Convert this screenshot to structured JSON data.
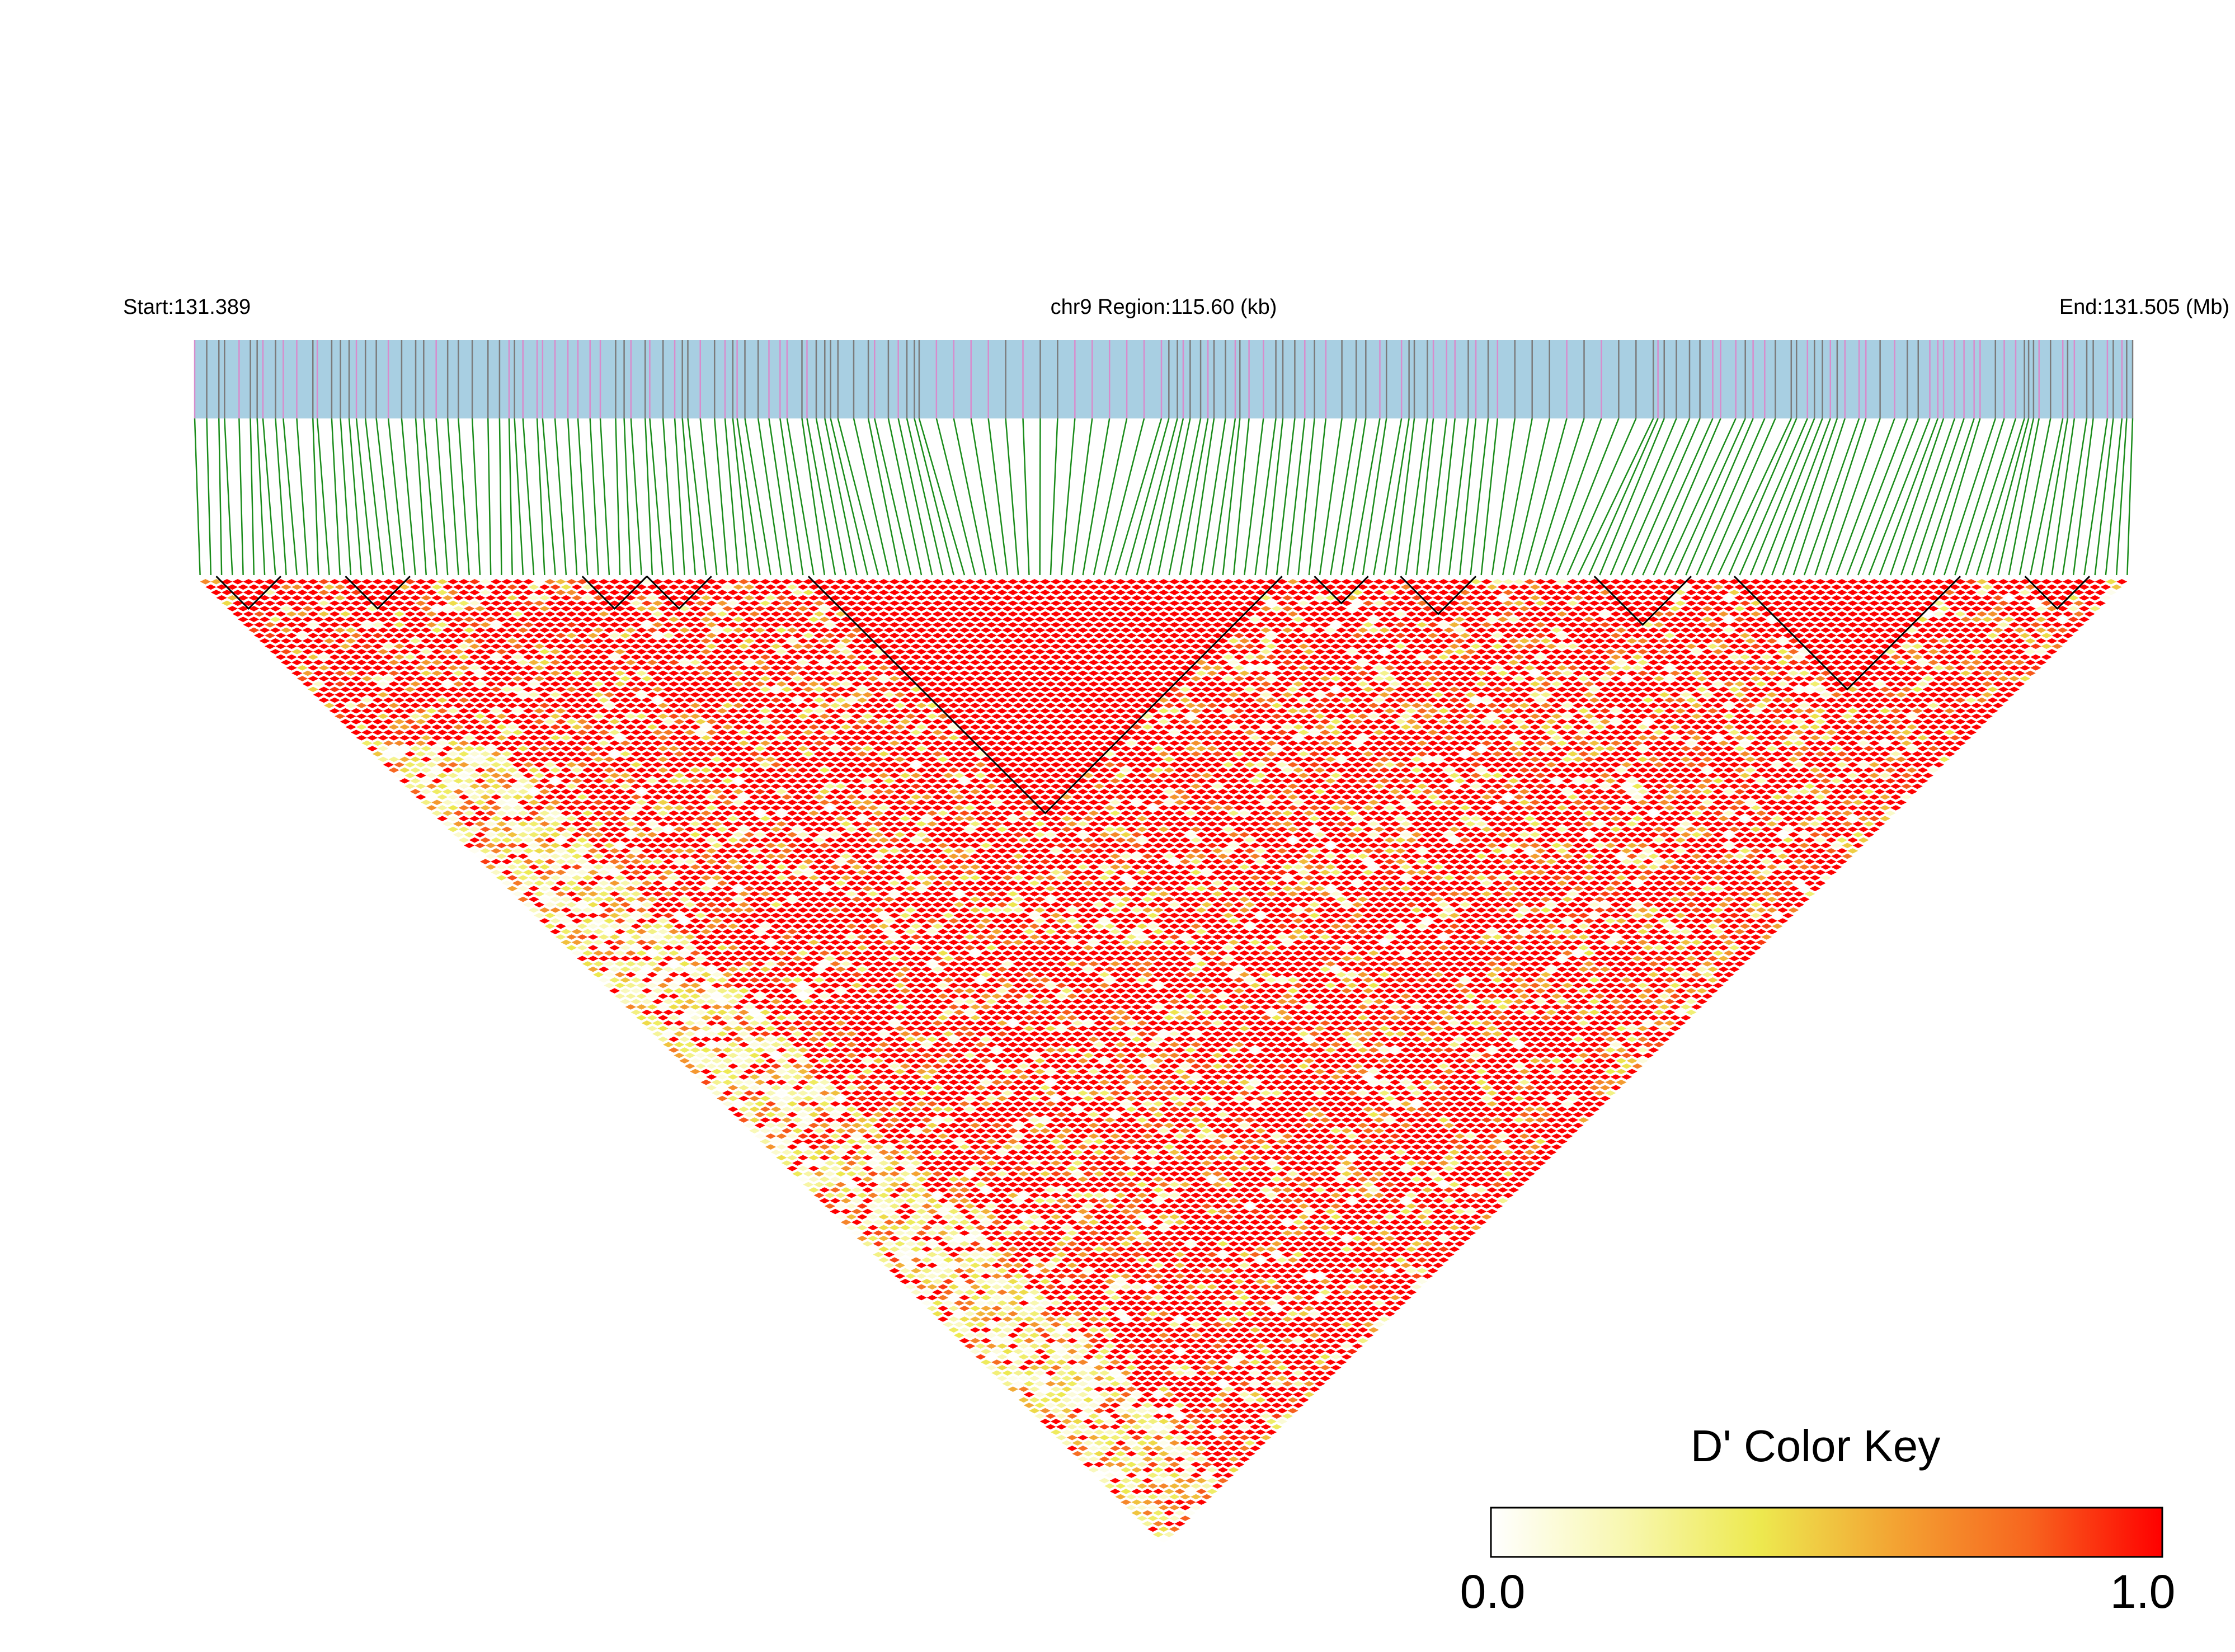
{
  "header": {
    "start_label": "Start:131.389",
    "region_label": "chr9 Region:115.60 (kb)",
    "end_label": "End:131.505 (Mb)"
  },
  "color_key": {
    "title": "D' Color Key",
    "min_label": "0.0",
    "max_label": "1.0",
    "stops": [
      "#ffffff",
      "#f8f7b0",
      "#ede94f",
      "#f3a433",
      "#f7661f",
      "#ff0000"
    ]
  },
  "colors": {
    "track_fill": "#a8cfe2",
    "track_marker": "#7b7b7b",
    "track_marker_highlight": "#d88ccc",
    "connector": "#1a8c1a",
    "block_outline": "#000000",
    "ld_high": "#ff0000"
  },
  "chart_data": {
    "type": "heatmap",
    "title": "",
    "chromosome": "chr9",
    "region_start_mb": 131.389,
    "region_end_mb": 131.505,
    "region_length_kb": 115.6,
    "metric": "D'",
    "value_range": [
      0,
      1
    ],
    "snp_count": 180,
    "haplotype_blocks": [
      {
        "first_snp": 2,
        "last_snp": 7
      },
      {
        "first_snp": 14,
        "last_snp": 19
      },
      {
        "first_snp": 36,
        "last_snp": 41
      },
      {
        "first_snp": 42,
        "last_snp": 47
      },
      {
        "first_snp": 57,
        "last_snp": 100
      },
      {
        "first_snp": 104,
        "last_snp": 108
      },
      {
        "first_snp": 112,
        "last_snp": 118
      },
      {
        "first_snp": 130,
        "last_snp": 138
      },
      {
        "first_snp": 143,
        "last_snp": 163
      },
      {
        "first_snp": 170,
        "last_snp": 175
      }
    ]
  }
}
